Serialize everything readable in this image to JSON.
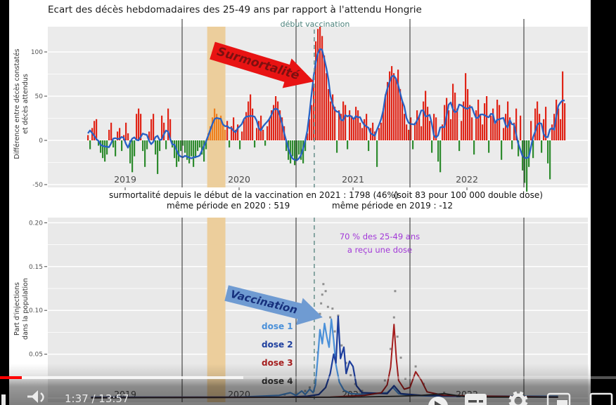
{
  "player": {
    "time_display": "1:37 / 13:57",
    "progress": {
      "played": 0.035,
      "buffered": 0.395
    },
    "icons": {
      "pause": "pause-bar",
      "volume": "speaker",
      "autoplay": "play-in-circle",
      "subtitles": "cc-box",
      "settings": "gear",
      "miniplayer": "picture-in-picture",
      "theater": "rectangle-outline"
    }
  },
  "summary": {
    "line1_left": "surmortalité depuis le début de la vaccination en 2021 : 1798  (46%)",
    "line1_right": "(soit 83 pour 100 000 double dose)",
    "line2_left": "même période en 2020 : 519",
    "line2_right": "même période en 2019 : -12"
  },
  "chart_data": [
    {
      "type": "bar",
      "title": "Ecart des décès hebdomadaires des 25-49 ans par rapport à l'attendu Hongrie",
      "ylabel": [
        "Différence entre décès constatés",
        "et décès attendus"
      ],
      "ytick_labels": [
        "100",
        "50",
        "0",
        "-50"
      ],
      "ytick_values": [
        100,
        50,
        0,
        -50
      ],
      "ylim": [
        -65,
        130
      ],
      "x_years": [
        "2019",
        "2020",
        "2021",
        "2022"
      ],
      "x_year_centers": [
        2019.5,
        2020.5,
        2021.5,
        2022.5
      ],
      "year_gridlines": [
        2020,
        2021,
        2022,
        2023
      ],
      "x_start_year": 2019.17,
      "x_step_years": 0.01852,
      "bars": [
        6,
        -10,
        14,
        22,
        24,
        -6,
        -14,
        -20,
        -24,
        -16,
        12,
        20,
        -8,
        -18,
        10,
        14,
        -12,
        6,
        20,
        8,
        -26,
        -36,
        -18,
        30,
        36,
        30,
        -12,
        -30,
        -10,
        10,
        24,
        30,
        -16,
        -38,
        -12,
        28,
        20,
        -10,
        36,
        24,
        -8,
        -20,
        -30,
        -24,
        -12,
        -6,
        -14,
        -22,
        -26,
        -18,
        -30,
        -20,
        -12,
        -8,
        -16,
        -24,
        -10,
        8,
        16,
        26,
        36,
        30,
        24,
        28,
        18,
        12,
        22,
        -8,
        16,
        26,
        12,
        18,
        -10,
        10,
        24,
        32,
        44,
        52,
        36,
        -8,
        14,
        22,
        28,
        12,
        -6,
        16,
        24,
        34,
        40,
        50,
        44,
        34,
        26,
        16,
        -12,
        -22,
        -26,
        -18,
        -28,
        -22,
        -16,
        -22,
        -26,
        -12,
        8,
        24,
        40,
        64,
        112,
        126,
        131,
        118,
        96,
        76,
        58,
        44,
        52,
        38,
        -14,
        34,
        30,
        44,
        40,
        -10,
        34,
        28,
        24,
        38,
        34,
        20,
        14,
        24,
        30,
        -12,
        14,
        20,
        10,
        -30,
        14,
        20,
        36,
        52,
        66,
        78,
        84,
        76,
        70,
        80,
        58,
        44,
        30,
        18,
        12,
        26,
        -10,
        20,
        34,
        28,
        16,
        44,
        56,
        38,
        22,
        -14,
        30,
        26,
        -24,
        -36,
        18,
        40,
        48,
        34,
        24,
        64,
        54,
        36,
        -12,
        22,
        44,
        76,
        58,
        40,
        26,
        -16,
        34,
        46,
        30,
        18,
        42,
        50,
        -14,
        28,
        36,
        22,
        46,
        40,
        -22,
        14,
        30,
        44,
        26,
        -10,
        20,
        36,
        -18,
        28,
        -34,
        -48,
        -58,
        -30,
        22,
        -20,
        36,
        44,
        30,
        -14,
        24,
        38,
        -26,
        -44,
        18,
        30,
        46,
        36,
        24,
        78,
        42
      ],
      "band_indices": [
        57,
        65
      ],
      "highlight_band": [
        2020.22,
        2020.38
      ],
      "vaccination_line_x": 2021.16,
      "vaccination_label": "début vaccination",
      "arrow_annotation": "Surmortalité",
      "trend_smoothing_window": 7,
      "colors": {
        "positive": "#e02417",
        "negative": "#2e8b2e",
        "band_bar": "#ef7f1f",
        "trend": "#2761c4",
        "band": "#ecce9c",
        "year_line": "#3a3a3a",
        "plot_bg": "#ebebeb",
        "grid": "#ffffff",
        "dashed": "#6e9490",
        "arrow": "#e81313",
        "arrow_text": "#7c1010"
      }
    },
    {
      "type": "line",
      "ylabel": [
        "Part d'injections",
        "dans la population"
      ],
      "ytick_labels": [
        "0.20",
        "0.15",
        "0.10",
        "0.05"
      ],
      "ytick_values": [
        0.2,
        0.15,
        0.1,
        0.05
      ],
      "ylim": [
        0,
        0.21
      ],
      "x_years": [
        "2019",
        "2020",
        "2021",
        "2022"
      ],
      "x_year_centers": [
        2019.5,
        2020.5,
        2021.5,
        2022.5
      ],
      "year_gridlines": [
        2020,
        2021,
        2022,
        2023
      ],
      "annotation_line1": "70 % des 25-49 ans",
      "annotation_line2": "a reçu une dose",
      "arrow_annotation": "Vaccination",
      "series": [
        {
          "name": "dose 1",
          "color": "#4a90d9",
          "width": 2.2,
          "points": [
            [
              2019.2,
              0.001
            ],
            [
              2020.5,
              0.001
            ],
            [
              2020.85,
              0.003
            ],
            [
              2020.95,
              0.006
            ],
            [
              2021.0,
              0.003
            ],
            [
              2021.05,
              0.008
            ],
            [
              2021.08,
              0.004
            ],
            [
              2021.12,
              0.01
            ],
            [
              2021.15,
              0.006
            ],
            [
              2021.17,
              0.015
            ],
            [
              2021.19,
              0.045
            ],
            [
              2021.21,
              0.078
            ],
            [
              2021.23,
              0.062
            ],
            [
              2021.25,
              0.085
            ],
            [
              2021.27,
              0.07
            ],
            [
              2021.29,
              0.058
            ],
            [
              2021.31,
              0.09
            ],
            [
              2021.33,
              0.066
            ],
            [
              2021.35,
              0.038
            ],
            [
              2021.38,
              0.018
            ],
            [
              2021.42,
              0.009
            ],
            [
              2021.48,
              0.005
            ],
            [
              2021.6,
              0.004
            ],
            [
              2021.8,
              0.006
            ],
            [
              2021.85,
              0.012
            ],
            [
              2021.9,
              0.005
            ],
            [
              2022.0,
              0.003
            ],
            [
              2022.3,
              0.002
            ],
            [
              2022.8,
              0.002
            ],
            [
              2023.3,
              0.002
            ]
          ]
        },
        {
          "name": "dose 2",
          "color": "#1e3f9e",
          "width": 2.2,
          "points": [
            [
              2019.2,
              0.0005
            ],
            [
              2020.9,
              0.001
            ],
            [
              2021.1,
              0.002
            ],
            [
              2021.2,
              0.004
            ],
            [
              2021.26,
              0.012
            ],
            [
              2021.3,
              0.028
            ],
            [
              2021.33,
              0.05
            ],
            [
              2021.35,
              0.04
            ],
            [
              2021.37,
              0.093
            ],
            [
              2021.39,
              0.045
            ],
            [
              2021.42,
              0.058
            ],
            [
              2021.44,
              0.028
            ],
            [
              2021.47,
              0.042
            ],
            [
              2021.5,
              0.036
            ],
            [
              2021.53,
              0.014
            ],
            [
              2021.58,
              0.006
            ],
            [
              2021.8,
              0.005
            ],
            [
              2021.86,
              0.014
            ],
            [
              2021.92,
              0.005
            ],
            [
              2022.1,
              0.003
            ],
            [
              2022.5,
              0.002
            ],
            [
              2023.3,
              0.001
            ]
          ]
        },
        {
          "name": "dose 3",
          "color": "#a51d1d",
          "width": 2,
          "points": [
            [
              2019.2,
              0.0003
            ],
            [
              2021.3,
              0.001
            ],
            [
              2021.6,
              0.003
            ],
            [
              2021.75,
              0.006
            ],
            [
              2021.8,
              0.015
            ],
            [
              2021.83,
              0.035
            ],
            [
              2021.86,
              0.084
            ],
            [
              2021.88,
              0.045
            ],
            [
              2021.9,
              0.02
            ],
            [
              2021.95,
              0.01
            ],
            [
              2022.0,
              0.012
            ],
            [
              2022.05,
              0.03
            ],
            [
              2022.1,
              0.02
            ],
            [
              2022.15,
              0.007
            ],
            [
              2022.3,
              0.003
            ],
            [
              2022.7,
              0.002
            ],
            [
              2023.3,
              0.001
            ]
          ]
        },
        {
          "name": "dose 4",
          "color": "#333333",
          "width": 1.8,
          "points": [
            [
              2019.2,
              0.0002
            ],
            [
              2021.5,
              0.001
            ],
            [
              2021.9,
              0.002
            ],
            [
              2022.1,
              0.003
            ],
            [
              2022.3,
              0.005
            ],
            [
              2022.45,
              0.002
            ],
            [
              2022.7,
              0.001
            ],
            [
              2023.3,
              0.001
            ]
          ]
        }
      ],
      "scatter": {
        "color": "#8f8f8f",
        "points": [
          [
            2020.9,
            0.004
          ],
          [
            2021.0,
            0.006
          ],
          [
            2021.08,
            0.008
          ],
          [
            2021.12,
            0.012
          ],
          [
            2021.17,
            0.022
          ],
          [
            2021.19,
            0.052
          ],
          [
            2021.21,
            0.096
          ],
          [
            2021.22,
            0.108
          ],
          [
            2021.23,
            0.118
          ],
          [
            2021.24,
            0.13
          ],
          [
            2021.26,
            0.122
          ],
          [
            2021.28,
            0.104
          ],
          [
            2021.3,
            0.092
          ],
          [
            2021.32,
            0.102
          ],
          [
            2021.34,
            0.076
          ],
          [
            2021.37,
            0.094
          ],
          [
            2021.4,
            0.06
          ],
          [
            2021.44,
            0.04
          ],
          [
            2021.48,
            0.026
          ],
          [
            2021.52,
            0.016
          ],
          [
            2021.58,
            0.008
          ],
          [
            2021.78,
            0.02
          ],
          [
            2021.83,
            0.056
          ],
          [
            2021.86,
            0.092
          ],
          [
            2021.87,
            0.122
          ],
          [
            2021.89,
            0.07
          ],
          [
            2021.92,
            0.046
          ],
          [
            2021.96,
            0.022
          ],
          [
            2022.05,
            0.036
          ],
          [
            2022.12,
            0.016
          ],
          [
            2022.3,
            0.006
          ]
        ]
      },
      "highlight_band": [
        2020.22,
        2020.38
      ],
      "vaccination_line_x": 2021.16,
      "colors": {
        "plot_bg": "#e9e9e9",
        "grid": "#ffffff",
        "year_line": "#3a3a3a",
        "dashed": "#6e9490",
        "band": "#ecce9c",
        "annotation": "#a238d8",
        "arrow": "#6f9bd2",
        "arrow_text": "#16307d"
      }
    }
  ]
}
